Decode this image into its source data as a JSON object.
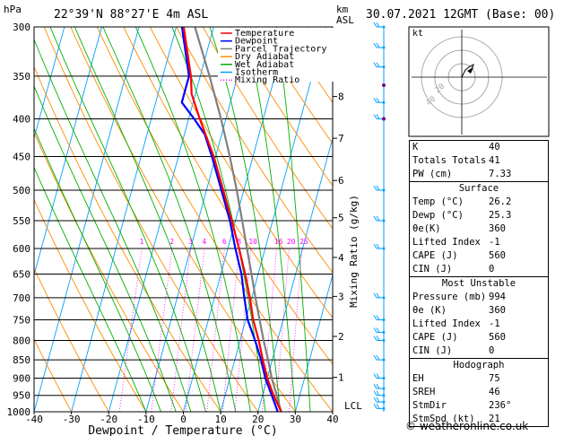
{
  "header": {
    "hpa": "hPa",
    "location": "22°39'N 88°27'E 4m ASL",
    "km": "km",
    "asl": "ASL",
    "datetime": "30.07.2021 12GMT (Base: 00)"
  },
  "legend": [
    {
      "name": "Temperature",
      "color": "#ff0000"
    },
    {
      "name": "Dewpoint",
      "color": "#0000ff"
    },
    {
      "name": "Parcel Trajectory",
      "color": "#808080"
    },
    {
      "name": "Dry Adiabat",
      "color": "#ff8c00"
    },
    {
      "name": "Wet Adiabat",
      "color": "#00b000"
    },
    {
      "name": "Isotherm",
      "color": "#00a0ff"
    },
    {
      "name": "Mixing Ratio",
      "color": "#ff00ff"
    }
  ],
  "chart_data": {
    "type": "line",
    "xlabel": "Dewpoint / Temperature (°C)",
    "ylabel_right": "Mixing Ratio (g/kg)",
    "x_ticks": [
      -40,
      -30,
      -20,
      -10,
      0,
      10,
      20,
      30,
      40
    ],
    "pressure_ticks": [
      300,
      350,
      400,
      450,
      500,
      550,
      600,
      650,
      700,
      750,
      800,
      850,
      900,
      950,
      1000
    ],
    "km_ticks": [
      {
        "km": "1",
        "p": 898
      },
      {
        "km": "2",
        "p": 790
      },
      {
        "km": "3",
        "p": 697
      },
      {
        "km": "4",
        "p": 617
      },
      {
        "km": "5",
        "p": 545
      },
      {
        "km": "6",
        "p": 485
      },
      {
        "km": "7",
        "p": 425
      },
      {
        "km": "8",
        "p": 373
      }
    ],
    "lcl_label": "LCL",
    "lcl_p": 985,
    "mixing_ratio_labels": [
      "1",
      "2",
      "3",
      "4",
      "6",
      "8",
      "10",
      "16",
      "20",
      "25"
    ],
    "mixing_ratio_p": 595,
    "series": [
      {
        "name": "Temperature",
        "color": "#ff0000",
        "points": [
          [
            1000,
            26.2
          ],
          [
            950,
            23
          ],
          [
            900,
            20
          ],
          [
            850,
            17.5
          ],
          [
            800,
            15
          ],
          [
            750,
            12
          ],
          [
            700,
            9.5
          ],
          [
            650,
            6.5
          ],
          [
            600,
            3
          ],
          [
            550,
            -1
          ],
          [
            500,
            -5.5
          ],
          [
            450,
            -10.5
          ],
          [
            400,
            -17
          ],
          [
            370,
            -21
          ],
          [
            350,
            -22.5
          ],
          [
            300,
            -28
          ]
        ]
      },
      {
        "name": "Dewpoint",
        "color": "#0000ff",
        "points": [
          [
            1000,
            25.3
          ],
          [
            950,
            22.5
          ],
          [
            900,
            19.5
          ],
          [
            850,
            17
          ],
          [
            800,
            14
          ],
          [
            750,
            10.5
          ],
          [
            700,
            8
          ],
          [
            650,
            5.5
          ],
          [
            600,
            2
          ],
          [
            550,
            -1.5
          ],
          [
            500,
            -6
          ],
          [
            450,
            -11
          ],
          [
            420,
            -14.5
          ],
          [
            400,
            -18.5
          ],
          [
            380,
            -23
          ],
          [
            360,
            -23
          ],
          [
            350,
            -23
          ],
          [
            300,
            -28.5
          ]
        ]
      },
      {
        "name": "Parcel Trajectory",
        "color": "#808080",
        "points": [
          [
            1000,
            26.2
          ],
          [
            950,
            23.8
          ],
          [
            900,
            21.2
          ],
          [
            850,
            18.9
          ],
          [
            800,
            16.3
          ],
          [
            750,
            13.7
          ],
          [
            700,
            11
          ],
          [
            650,
            8.2
          ],
          [
            600,
            5.1
          ],
          [
            550,
            1.8
          ],
          [
            500,
            -1.9
          ],
          [
            450,
            -6.2
          ],
          [
            400,
            -11.3
          ],
          [
            350,
            -17.5
          ],
          [
            300,
            -25
          ]
        ]
      }
    ],
    "xlim": [
      -40,
      40
    ],
    "ylim": [
      1000,
      300
    ]
  },
  "hodograph": {
    "unit": "kt"
  },
  "indices": [
    {
      "label": "K",
      "value": "40"
    },
    {
      "label": "Totals Totals",
      "value": "41"
    },
    {
      "label": "PW (cm)",
      "value": "7.33"
    }
  ],
  "surface": {
    "title": "Surface",
    "rows": [
      {
        "label": "Temp (°C)",
        "value": "26.2"
      },
      {
        "label": "Dewp (°C)",
        "value": "25.3"
      },
      {
        "label": "θe(K)",
        "value": "360"
      },
      {
        "label": "Lifted Index",
        "value": "-1"
      },
      {
        "label": "CAPE (J)",
        "value": "560"
      },
      {
        "label": "CIN (J)",
        "value": "0"
      }
    ]
  },
  "most_unstable": {
    "title": "Most Unstable",
    "rows": [
      {
        "label": "Pressure (mb)",
        "value": "994"
      },
      {
        "label": "θe (K)",
        "value": "360"
      },
      {
        "label": "Lifted Index",
        "value": "-1"
      },
      {
        "label": "CAPE (J)",
        "value": "560"
      },
      {
        "label": "CIN (J)",
        "value": "0"
      }
    ]
  },
  "hodograph_table": {
    "title": "Hodograph",
    "rows": [
      {
        "label": "EH",
        "value": "75"
      },
      {
        "label": "SREH",
        "value": "46"
      },
      {
        "label": "StmDir",
        "value": "236°"
      },
      {
        "label": "StmSpd (kt)",
        "value": "21"
      }
    ]
  },
  "copyright": "© weatheronline.co.uk"
}
